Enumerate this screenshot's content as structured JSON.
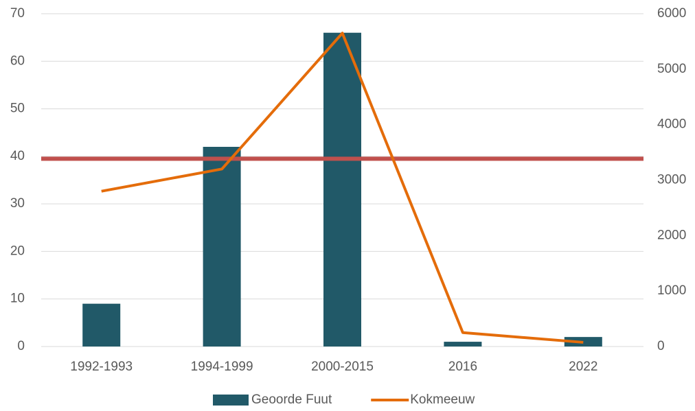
{
  "chart_data": {
    "type": "bar",
    "categories": [
      "1992-1993",
      "1994-1999",
      "2000-2015",
      "2016",
      "2022"
    ],
    "series": [
      {
        "name": "Geoorde Fuut",
        "type": "bar",
        "color": "#215968",
        "values": [
          9,
          42,
          66,
          1,
          2
        ]
      },
      {
        "name": "Kokmeeuw",
        "type": "line",
        "axis": "y2",
        "color": "#e46c0a",
        "values": [
          2800,
          3200,
          5650,
          250,
          75
        ]
      }
    ],
    "reference_line": {
      "value": 39.5,
      "color": "#c0504d"
    },
    "ylim": [
      0,
      70
    ],
    "yticks": [
      0,
      10,
      20,
      30,
      40,
      50,
      60,
      70
    ],
    "y2lim": [
      0,
      6000
    ],
    "y2ticks": [
      0,
      1000,
      2000,
      3000,
      4000,
      5000,
      6000
    ],
    "grid": true,
    "legend": "bottom"
  }
}
